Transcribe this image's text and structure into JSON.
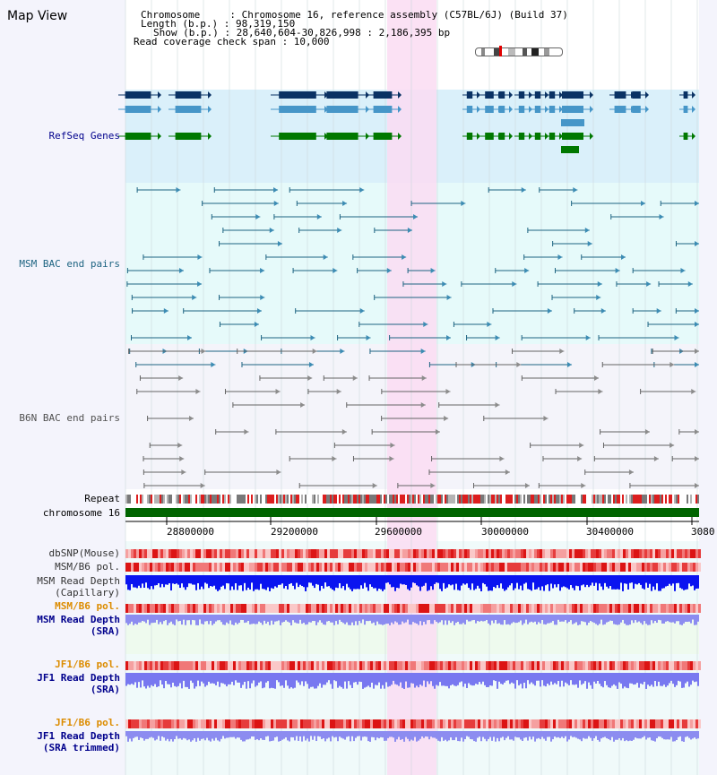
{
  "header": {
    "title": "Map View",
    "chromosome_line": "Chromosome     : Chromosome 16, reference assembly (C57BL/6J) (Build 37)",
    "length_line": "Length (b.p.) : 98,319,150",
    "show_line": "Show (b.p.) : 28,640,604-30,826,998 : 2,186,395 bp",
    "coverage_line": "Read coverage check span : 10,000"
  },
  "tracks": {
    "refseq": "RefSeq Genes",
    "msm_bac": "MSM BAC end pairs",
    "b6n_bac": "B6N BAC end pairs",
    "repeat": "Repeat",
    "chromosome": "chromosome 16",
    "dbsnp": "dbSNP(Mouse)",
    "msm_b6_pol_cap": "MSM/B6 pol.",
    "msm_depth_cap_1": "MSM Read Depth",
    "msm_depth_cap_2": "(Capillary)",
    "msm_b6_pol_sra": "MSM/B6 pol.",
    "msm_depth_sra_1": "MSM Read Depth",
    "msm_depth_sra_2": "(SRA)",
    "jf1_b6_pol": "JF1/B6 pol.",
    "jf1_depth_sra_1": "JF1 Read Depth",
    "jf1_depth_sra_2": "(SRA)",
    "jf1_b6_pol_trim": "JF1/B6 pol.",
    "jf1_depth_trim_1": "JF1 Read Depth",
    "jf1_depth_trim_2": "(SRA trimmed)"
  },
  "axis": {
    "ticks": [
      "28800000",
      "29200000",
      "29600000",
      "30000000",
      "30400000",
      "3080"
    ]
  },
  "colors": {
    "refseq_bg": "#daf0fa",
    "msm_bg": "#e6fafa",
    "b6n_bg": "#f4f4fa",
    "highlight": "#fadcf2",
    "gene_dark": "#0a3264",
    "gene_mid": "#4696c8",
    "gene_green": "#007800",
    "msm_line": "#1e6482",
    "b6n_line": "#646464",
    "chrom_bar": "#006400",
    "label_blue": "#00008c",
    "label_orange": "#dc8c00",
    "label_dark": "#323232"
  }
}
